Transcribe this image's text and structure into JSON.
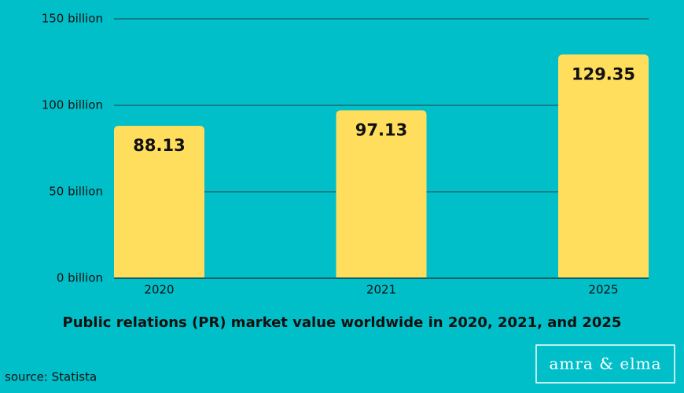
{
  "chart_data": {
    "type": "bar",
    "title": "Public relations (PR) market value worldwide in 2020, 2021, and 2025",
    "categories": [
      "2020",
      "2021",
      "2025"
    ],
    "values": [
      88.13,
      97.13,
      129.35
    ],
    "color": "#ffde5e",
    "data_labels": true,
    "ylim": [
      0,
      150
    ],
    "yticks": [
      {
        "value": 0,
        "label": "0 billion"
      },
      {
        "value": 50,
        "label": "50 billion"
      },
      {
        "value": 100,
        "label": "100 billion"
      },
      {
        "value": 150,
        "label": "150 billion"
      }
    ],
    "grid": true,
    "source": "source: Statista",
    "watermark": "amra & elma"
  }
}
